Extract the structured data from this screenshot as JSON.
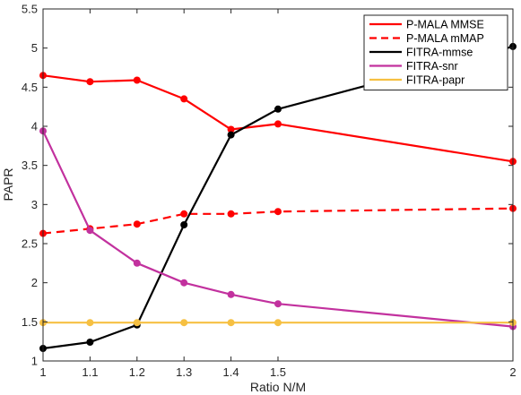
{
  "chart_data": {
    "type": "line",
    "xlabel": "Ratio N/M",
    "ylabel": "PAPR",
    "xlim": [
      1,
      2
    ],
    "ylim": [
      1,
      5.5
    ],
    "x_ticks": [
      1,
      1.1,
      1.2,
      1.3,
      1.4,
      1.5,
      2
    ],
    "x_tick_labels": [
      "1",
      "1.1",
      "1.2",
      "1.3",
      "1.4",
      "1.5",
      "2"
    ],
    "y_ticks": [
      1,
      1.5,
      2,
      2.5,
      3,
      3.5,
      4,
      4.5,
      5,
      5.5
    ],
    "y_tick_labels": [
      "1",
      "1.5",
      "2",
      "2.5",
      "3",
      "3.5",
      "4",
      "4.5",
      "5",
      "5.5"
    ],
    "grid": false,
    "legend_position": "top-right",
    "x": [
      1,
      1.1,
      1.2,
      1.3,
      1.4,
      1.5,
      2
    ],
    "series": [
      {
        "name": "P-MALA MMSE",
        "color": "#ff0000",
        "dash": "solid",
        "values": [
          4.65,
          4.57,
          4.59,
          4.35,
          3.96,
          4.03,
          3.55
        ]
      },
      {
        "name": "P-MALA mMAP",
        "color": "#ff0000",
        "dash": "dashed",
        "values": [
          2.63,
          2.69,
          2.75,
          2.88,
          2.88,
          2.91,
          2.95
        ]
      },
      {
        "name": "FITRA-mmse",
        "color": "#000000",
        "dash": "solid",
        "values": [
          1.16,
          1.24,
          1.46,
          2.74,
          3.89,
          4.22,
          5.02
        ]
      },
      {
        "name": "FITRA-snr",
        "color": "#c2319e",
        "dash": "solid",
        "values": [
          3.94,
          2.67,
          2.25,
          2.0,
          1.85,
          1.73,
          1.44
        ]
      },
      {
        "name": "FITRA-papr",
        "color": "#f6c042",
        "dash": "solid",
        "values": [
          1.49,
          1.49,
          1.49,
          1.49,
          1.49,
          1.49,
          1.49
        ]
      }
    ]
  }
}
